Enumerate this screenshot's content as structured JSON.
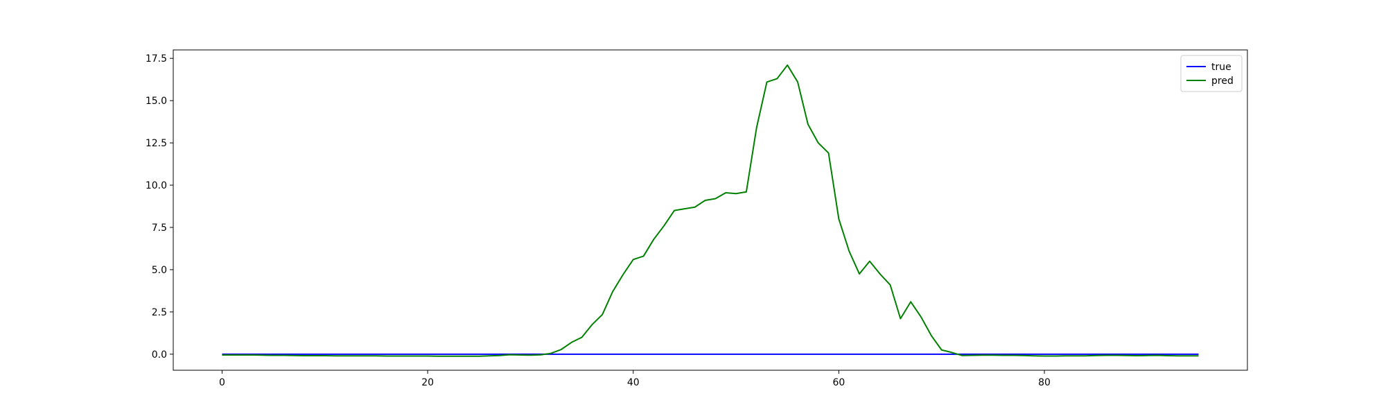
{
  "chart_data": {
    "type": "line",
    "title": "",
    "xlabel": "",
    "ylabel": "",
    "xlim": [
      -4.75,
      99.75
    ],
    "ylim": [
      -0.95,
      18.0
    ],
    "xticks": [
      0,
      20,
      40,
      60,
      80
    ],
    "yticks": [
      0.0,
      2.5,
      5.0,
      7.5,
      10.0,
      12.5,
      15.0,
      17.5
    ],
    "xtick_labels": [
      "0",
      "20",
      "40",
      "60",
      "80"
    ],
    "ytick_labels": [
      "0.0",
      "2.5",
      "5.0",
      "7.5",
      "10.0",
      "12.5",
      "15.0",
      "17.5"
    ],
    "grid": false,
    "legend_position": "upper right",
    "x": [
      0,
      1,
      2,
      3,
      4,
      5,
      6,
      7,
      8,
      9,
      10,
      11,
      12,
      13,
      14,
      15,
      16,
      17,
      18,
      19,
      20,
      21,
      22,
      23,
      24,
      25,
      26,
      27,
      28,
      29,
      30,
      31,
      32,
      33,
      34,
      35,
      36,
      37,
      38,
      39,
      40,
      41,
      42,
      43,
      44,
      45,
      46,
      47,
      48,
      49,
      50,
      51,
      52,
      53,
      54,
      55,
      56,
      57,
      58,
      59,
      60,
      61,
      62,
      63,
      64,
      65,
      66,
      67,
      68,
      69,
      70,
      71,
      72,
      73,
      74,
      75,
      76,
      77,
      78,
      79,
      80,
      81,
      82,
      83,
      84,
      85,
      86,
      87,
      88,
      89,
      90,
      91,
      92,
      93,
      94,
      95
    ],
    "series": [
      {
        "name": "true",
        "color": "#0000ff",
        "values": [
          0,
          0,
          0,
          0,
          0,
          0,
          0,
          0,
          0,
          0,
          0,
          0,
          0,
          0,
          0,
          0,
          0,
          0,
          0,
          0,
          0,
          0,
          0,
          0,
          0,
          0,
          0,
          0,
          0,
          0,
          0,
          0,
          0,
          0,
          0,
          0,
          0,
          0,
          0,
          0,
          0,
          0,
          0,
          0,
          0,
          0,
          0,
          0,
          0,
          0,
          0,
          0,
          0,
          0,
          0,
          0,
          0,
          0,
          0,
          0,
          0,
          0,
          0,
          0,
          0,
          0,
          0,
          0,
          0,
          0,
          0,
          0,
          0,
          0,
          0,
          0,
          0,
          0,
          0,
          0,
          0,
          0,
          0,
          0,
          0,
          0,
          0,
          0,
          0,
          0,
          0,
          0,
          0,
          0,
          0,
          0
        ]
      },
      {
        "name": "pred",
        "color": "#008000",
        "values": [
          -0.05,
          -0.05,
          -0.05,
          -0.05,
          -0.06,
          -0.07,
          -0.07,
          -0.08,
          -0.09,
          -0.09,
          -0.09,
          -0.1,
          -0.1,
          -0.1,
          -0.1,
          -0.1,
          -0.11,
          -0.11,
          -0.11,
          -0.11,
          -0.11,
          -0.12,
          -0.12,
          -0.12,
          -0.12,
          -0.12,
          -0.1,
          -0.08,
          -0.03,
          -0.05,
          -0.06,
          -0.04,
          0.05,
          0.28,
          0.7,
          1.0,
          1.75,
          2.35,
          3.7,
          4.7,
          5.6,
          5.8,
          6.8,
          7.6,
          8.5,
          8.6,
          8.7,
          9.1,
          9.2,
          9.55,
          9.5,
          9.6,
          13.4,
          16.1,
          16.3,
          17.1,
          16.1,
          13.6,
          12.5,
          11.9,
          8.0,
          6.1,
          4.75,
          5.5,
          4.75,
          4.1,
          2.1,
          3.1,
          2.2,
          1.1,
          0.25,
          0.1,
          -0.08,
          -0.07,
          -0.06,
          -0.06,
          -0.07,
          -0.07,
          -0.08,
          -0.1,
          -0.11,
          -0.11,
          -0.1,
          -0.1,
          -0.1,
          -0.08,
          -0.07,
          -0.07,
          -0.08,
          -0.09,
          -0.08,
          -0.07,
          -0.09,
          -0.1,
          -0.1,
          -0.1
        ]
      }
    ]
  }
}
